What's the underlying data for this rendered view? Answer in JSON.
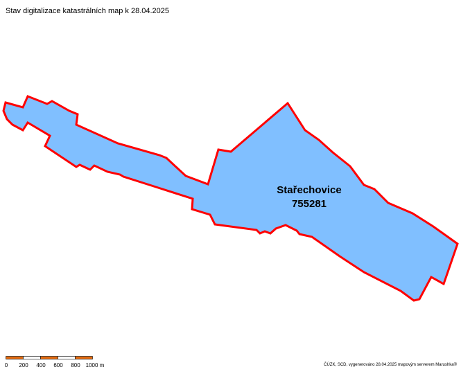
{
  "title": "Stav digitalizace katastrálních map k 28.04.2025",
  "parcel": {
    "name": "Stařechovice",
    "code": "755281",
    "fill_color": "#80BFFF",
    "stroke_color": "#FF0000"
  },
  "scalebar": {
    "labels": [
      "0",
      "200",
      "400",
      "600",
      "800",
      "1000 m"
    ],
    "colors": [
      "#E06A10",
      "#FFFFFF"
    ]
  },
  "credit": "ČÚZK, SCD, vygenerováno 28.04.2025 mapovým serverem Marushka®"
}
